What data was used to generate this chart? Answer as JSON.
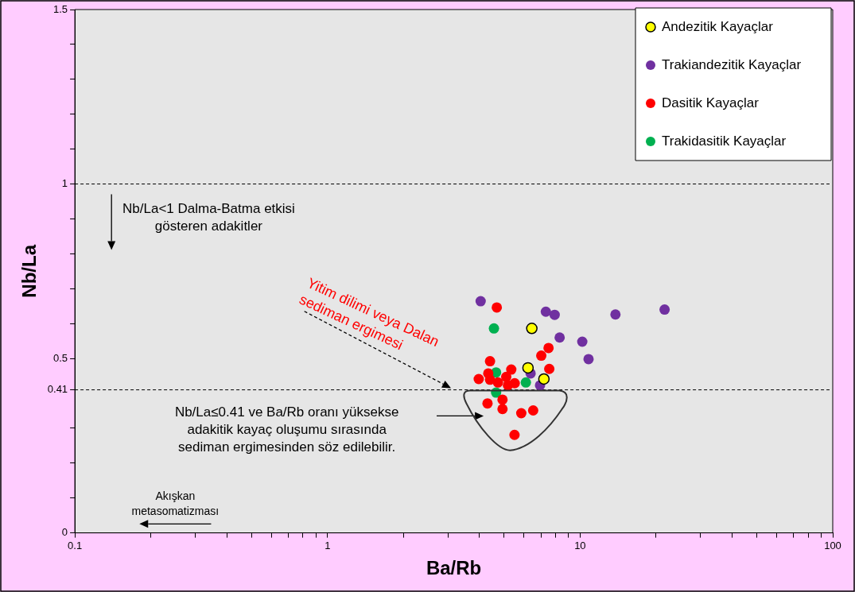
{
  "chart_data": {
    "type": "scatter",
    "xlabel": "Ba/Rb",
    "ylabel": "Nb/La",
    "log": "x",
    "xlim": [
      0.1,
      100
    ],
    "ylim": [
      0,
      1.5
    ],
    "xticks": [
      0.1,
      {
        "value": 0.2,
        "label": null
      },
      {
        "value": 0.3,
        "label": null
      },
      {
        "value": 0.4,
        "label": null
      },
      {
        "value": 0.5,
        "label": null
      },
      {
        "value": 0.6,
        "label": null
      },
      {
        "value": 0.7,
        "label": null
      },
      {
        "value": 0.8,
        "label": null
      },
      {
        "value": 0.9,
        "label": null
      },
      1,
      {
        "value": 2,
        "label": null
      },
      {
        "value": 3,
        "label": null
      },
      {
        "value": 4,
        "label": null
      },
      {
        "value": 5,
        "label": null
      },
      {
        "value": 6,
        "label": null
      },
      {
        "value": 7,
        "label": null
      },
      {
        "value": 8,
        "label": null
      },
      {
        "value": 9,
        "label": null
      },
      10,
      {
        "value": 20,
        "label": null
      },
      {
        "value": 30,
        "label": null
      },
      {
        "value": 40,
        "label": null
      },
      {
        "value": 50,
        "label": null
      },
      {
        "value": 60,
        "label": null
      },
      {
        "value": 70,
        "label": null
      },
      {
        "value": 80,
        "label": null
      },
      {
        "value": 90,
        "label": null
      },
      100
    ],
    "yticks": [
      0,
      {
        "value": 0.1,
        "label": null
      },
      {
        "value": 0.2,
        "label": null
      },
      {
        "value": 0.3,
        "label": null
      },
      0.41,
      0.5,
      {
        "value": 0.6,
        "label": null
      },
      {
        "value": 0.7,
        "label": null
      },
      {
        "value": 0.8,
        "label": null
      },
      {
        "value": 0.9,
        "label": null
      },
      1,
      {
        "value": 1.1,
        "label": null
      },
      {
        "value": 1.2,
        "label": null
      },
      {
        "value": 1.3,
        "label": null
      },
      {
        "value": 1.4,
        "label": null
      },
      1.5
    ],
    "grid": false,
    "legend": "top right",
    "marker": "circle",
    "series": [
      {
        "name": "Andezitik Kayaçlar",
        "color": "#ffff00",
        "x": [
          6.44,
          6.22,
          7.19
        ],
        "values": [
          0.586,
          0.473,
          0.441
        ]
      },
      {
        "name": "Trakiandezitik Kayaçlar",
        "color": "#7030a0",
        "x": [
          4.04,
          7.32,
          7.93,
          13.8,
          21.6,
          8.3,
          10.2,
          10.8,
          6.37,
          6.94
        ],
        "values": [
          0.664,
          0.634,
          0.625,
          0.626,
          0.64,
          0.56,
          0.548,
          0.498,
          0.457,
          0.423
        ]
      },
      {
        "name": "Dasitik Kayaçlar",
        "color": "#ff0000",
        "x": [
          4.68,
          7.5,
          7.02,
          4.4,
          7.55,
          4.33,
          3.97,
          4.4,
          4.73,
          5.13,
          5.34,
          5.1,
          5.18,
          5.51,
          4.93,
          4.3,
          4.93,
          5.85,
          6.52,
          5.5
        ],
        "values": [
          0.646,
          0.53,
          0.508,
          0.492,
          0.47,
          0.457,
          0.441,
          0.439,
          0.431,
          null,
          0.468,
          0.447,
          0.423,
          0.429,
          0.382,
          0.371,
          0.355,
          0.343,
          0.351,
          0.281
        ]
      },
      {
        "name": "Trakidasitik Kayaçlar",
        "color": "#00b050",
        "x": [
          4.56,
          4.65,
          6.1,
          4.65
        ],
        "values": [
          0.586,
          0.46,
          0.431,
          0.402
        ]
      }
    ],
    "ref_lines": [
      {
        "axis": "y",
        "value": 1,
        "line_style": "dashed",
        "color": "#000000"
      },
      {
        "axis": "y",
        "value": 0.41,
        "line_style": "dashed",
        "color": "#000000"
      }
    ],
    "annotations": [
      "Nb/La<1 Dalma-Batma etkisi\ngösteren adakitler",
      "Yitim dilimi veya Dalan\nsediman ergimesi",
      "Nb/La≤0.41 ve Ba/Rb oranı yüksekse\nadakitik kayaç oluşumu sırasında\nsediman ergimesinden söz edilebilir.",
      "Akışkan\nmetasomatizması"
    ]
  }
}
